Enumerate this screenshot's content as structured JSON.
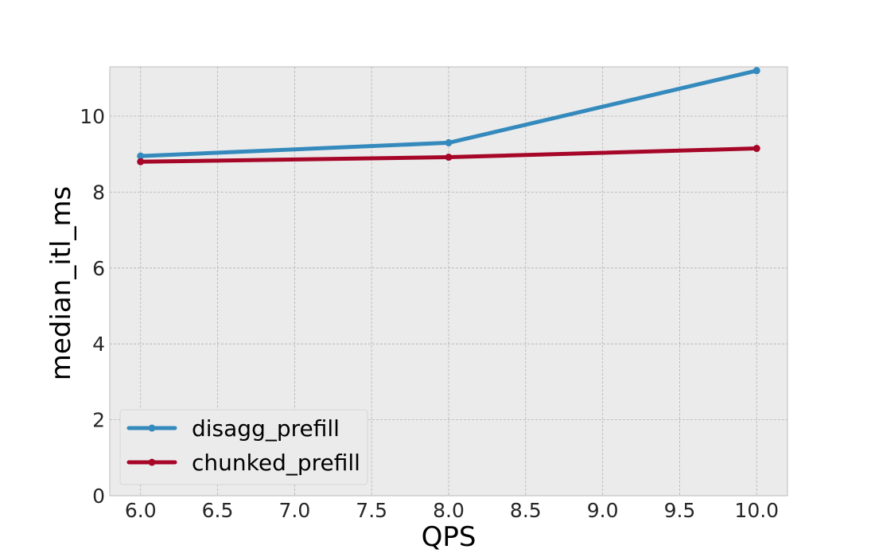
{
  "chart_data": {
    "type": "line",
    "title": "",
    "xlabel": "QPS",
    "ylabel": "median_itl_ms",
    "xlim": [
      5.8,
      10.2
    ],
    "ylim": [
      0,
      11.3
    ],
    "x_ticks": [
      6.0,
      6.5,
      7.0,
      7.5,
      8.0,
      8.5,
      9.0,
      9.5,
      10.0
    ],
    "x_tick_labels": [
      "6.0",
      "6.5",
      "7.0",
      "7.5",
      "8.0",
      "8.5",
      "9.0",
      "9.5",
      "10.0"
    ],
    "y_ticks": [
      0,
      2,
      4,
      6,
      8,
      10
    ],
    "y_tick_labels": [
      "0",
      "2",
      "4",
      "6",
      "8",
      "10"
    ],
    "grid": true,
    "legend_position": "lower-left",
    "background_color": "#ebebeb",
    "series": [
      {
        "name": "disagg_prefill",
        "color": "#348abd",
        "x": [
          6.0,
          8.0,
          10.0
        ],
        "y": [
          8.95,
          9.3,
          11.2
        ]
      },
      {
        "name": "chunked_prefill",
        "color": "#a60628",
        "x": [
          6.0,
          8.0,
          10.0
        ],
        "y": [
          8.8,
          8.92,
          9.15
        ]
      }
    ]
  }
}
